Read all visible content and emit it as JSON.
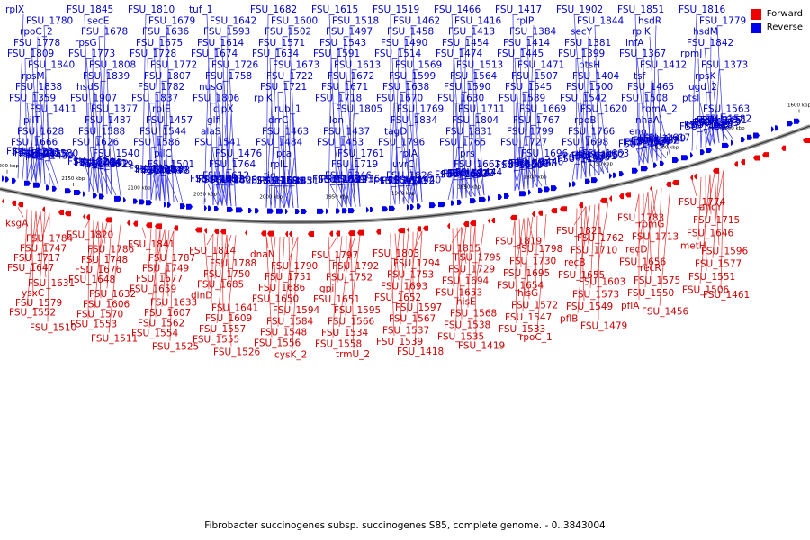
{
  "legend": {
    "forward": {
      "label": "Forward",
      "color": "#ee0000"
    },
    "reverse": {
      "label": "Reverse",
      "color": "#0000ee"
    }
  },
  "caption": "Fibrobacter succinogenes subsp. succinogenes S85, complete genome. - 0..3843004",
  "scale_ticks": [
    "2200 kbp",
    "2150 kbp",
    "2100 kbp",
    "2050 kbp",
    "2000 kbp",
    "1950 kbp",
    "1900 kbp",
    "1850 kbp",
    "1800 kbp",
    "1750 kbp",
    "1700 kbp",
    "1650 kbp",
    "1600 kbp"
  ],
  "reverse_labels": [
    "rplX",
    "FSU_1845",
    "FSU_1810",
    "tuf_1",
    "FSU_1682",
    "FSU_1615",
    "FSU_1519",
    "FSU_1466",
    "FSU_1417",
    "FSU_1902",
    "FSU_1851",
    "FSU_1816",
    "FSU_1780",
    "secE",
    "FSU_1679",
    "FSU_1642",
    "FSU_1600",
    "FSU_1518",
    "FSU_1462",
    "FSU_1416",
    "rplP",
    "FSU_1844",
    "hsdR",
    "FSU_1779",
    "rpoC_2",
    "FSU_1678",
    "FSU_1636",
    "FSU_1593",
    "FSU_1502",
    "FSU_1497",
    "FSU_1458",
    "FSU_1413",
    "FSU_1384",
    "secY",
    "rplK",
    "hsdM",
    "FSU_1778",
    "rpsG",
    "FSU_1675",
    "FSU_1614",
    "FSU_1571",
    "FSU_1543",
    "FSU_1490",
    "FSU_1454",
    "FSU_1414",
    "FSU_1381",
    "infA",
    "FSU_1842",
    "FSU_1809",
    "FSU_1773",
    "FSU_1728",
    "FSU_1674",
    "FSU_1634",
    "FSU_1591",
    "FSU_1514",
    "FSU_1474",
    "FSU_1445",
    "FSU_1399",
    "FSU_1367",
    "rpmJ",
    "FSU_1840",
    "FSU_1808",
    "FSU_1772",
    "FSU_1726",
    "FSU_1673",
    "FSU_1613",
    "FSU_1569",
    "FSU_1513",
    "FSU_1471",
    "ptsH",
    "FSU_1412",
    "FSU_1373",
    "rpsM",
    "FSU_1839",
    "FSU_1807",
    "FSU_1758",
    "FSU_1722",
    "FSU_1672",
    "FSU_1599",
    "FSU_1564",
    "FSU_1507",
    "FSU_1404",
    "tsf",
    "rpsK",
    "FSU_1838",
    "hsdS",
    "FSU_1782",
    "nusG",
    "FSU_1721",
    "FSU_1671",
    "FSU_1638",
    "FSU_1590",
    "FSU_1545",
    "FSU_1500",
    "FSU_1465",
    "ugd_2",
    "FSU_1359",
    "FSU_1907",
    "FSU_1837",
    "FSU_1806",
    "rplK",
    "FSU_1718",
    "FSU_1670",
    "FSU_1630",
    "FSU_1589",
    "FSU_1542",
    "FSU_1508",
    "ptsI",
    "FSU_1411",
    "FSU_1377",
    "rplE",
    "clpX",
    "rub_1",
    "FSU_1805",
    "FSU_1769",
    "FSU_1711",
    "FSU_1669",
    "FSU_1620",
    "romA_2",
    "FSU_1563",
    "pilT",
    "FSU_1487",
    "FSU_1457",
    "glf",
    "drrC",
    "lon",
    "FSU_1834",
    "FSU_1804",
    "FSU_1767",
    "rpoB",
    "nhaA",
    "FSU_1667",
    "FSU_1628",
    "FSU_1588",
    "FSU_1544",
    "alaS",
    "FSU_1463",
    "FSU_1437",
    "tagD",
    "FSU_1831",
    "FSU_1799",
    "FSU_1766",
    "eno",
    "yfiA",
    "FSU_1666",
    "FSU_1626",
    "FSU_1586",
    "FSU_1541",
    "FSU_1484",
    "FSU_1453",
    "FSU_1796",
    "FSU_1765",
    "FSU_1727",
    "FSU_1698",
    "FSU_1664",
    "FSU_1622",
    "FSU_1580",
    "FSU_1540",
    "pilC",
    "FSU_1476",
    "pta",
    "FSU_1761",
    "rplA",
    "prs",
    "FSU_1696",
    "FSU_1663",
    "FSU_1617",
    "FSU_1582",
    "prmA",
    "FSU_1529",
    "FSU_1501",
    "FSU_1764",
    "rplL",
    "FSU_1719",
    "uvrC",
    "FSU_1662",
    "sbcD",
    "leuS",
    "glnN_1",
    "nifH_2",
    "FSU_1691",
    "FSU_1661",
    "FSU_1639",
    "FSU_1612",
    "tig",
    "FSU_1846",
    "FSU_1826",
    "FSU_1822",
    "FSU_1827",
    "FSU_1781",
    "FSU_1757",
    "FSU_1683",
    "FSU_1703",
    "FSU_1704",
    "FSU_1684",
    "FSU_1687",
    "FSU_1688",
    "FSU_1689",
    "FSU_1690",
    "FSU_1623",
    "FSU_1616",
    "FSU_1635",
    "FSU_1637",
    "FSU_1618",
    "FSU_1823",
    "FSU_1824",
    "FSU_1825",
    "FSU_1756",
    "FSU_1759",
    "FSU_1701",
    "FSU_1702",
    "FSU_1706",
    "FSU_1520",
    "FSU_1459",
    "FSU_1470",
    "FSU_1438",
    "FSU_1439",
    "rpsI",
    "rplM",
    "FSU_1428",
    "FSU_1431",
    "FSU_1436",
    "FSU_1440",
    "FSU_1444",
    "FSU_1446",
    "FSU_1452",
    "FSU_1449",
    "FSU_1451",
    "FSU_1455",
    "FSU_1472",
    "FSU_1478",
    "FSU_1480",
    "FSU_1485",
    "FSU_1491",
    "FSU_1492",
    "FSU_1467",
    "FSU_1468",
    "FSU_1475",
    "FSU_1482",
    "FSU_1473",
    "FSU_1481",
    "FSU_1486",
    "FSU_1488",
    "FSU_1493",
    "FSU_1521",
    "FSU_1522",
    "FSU_1523",
    "FSU_1524"
  ],
  "forward_labels": [
    "ksgA",
    "FSU_1820",
    "FSU_1841",
    "FSU_1814",
    "dnaN",
    "FSU_1797",
    "FSU_1803",
    "FSU_1815",
    "FSU_1819",
    "FSU_1821",
    "FSU_1783",
    "FSU_1774",
    "FSU_1784",
    "FSU_1786",
    "FSU_1787",
    "FSU_1788",
    "FSU_1790",
    "FSU_1792",
    "FSU_1794",
    "FSU_1795",
    "FSU_1798",
    "FSU_1762",
    "rpmG",
    "ahcY",
    "FSU_1747",
    "FSU_1748",
    "FSU_1749",
    "FSU_1750",
    "FSU_1751",
    "FSU_1752",
    "FSU_1753",
    "FSU_1729",
    "FSU_1730",
    "FSU_1710",
    "FSU_1713",
    "FSU_1715",
    "FSU_1717",
    "FSU_1676",
    "FSU_1677",
    "FSU_1685",
    "FSU_1686",
    "gpi",
    "FSU_1693",
    "FSU_1694",
    "FSU_1695",
    "recB",
    "recD",
    "FSU_1646",
    "FSU_1647",
    "FSU_1648",
    "FSU_1659",
    "dinD",
    "FSU_1650",
    "FSU_1651",
    "FSU_1652",
    "FSU_1653",
    "FSU_1654",
    "FSU_1655",
    "FSU_1656",
    "metH",
    "FSU_1631",
    "FSU_1632",
    "FSU_1633",
    "FSU_1641",
    "FSU_1594",
    "FSU_1595",
    "FSU_1597",
    "hisE",
    "hisG",
    "FSU_1603",
    "recR",
    "FSU_1596",
    "ysxC",
    "FSU_1606",
    "FSU_1607",
    "FSU_1609",
    "FSU_1584",
    "FSU_1566",
    "FSU_1567",
    "FSU_1568",
    "FSU_1572",
    "FSU_1573",
    "FSU_1575",
    "FSU_1577",
    "FSU_1579",
    "FSU_1570",
    "FSU_1562",
    "FSU_1557",
    "FSU_1548",
    "FSU_1534",
    "FSU_1537",
    "FSU_1538",
    "FSU_1547",
    "FSU_1549",
    "FSU_1550",
    "FSU_1551",
    "FSU_1552",
    "FSU_1553",
    "FSU_1554",
    "FSU_1555",
    "FSU_1556",
    "FSU_1558",
    "FSU_1539",
    "FSU_1535",
    "FSU_1533",
    "pflB",
    "pflA",
    "FSU_1506",
    "FSU_1510",
    "FSU_1511",
    "FSU_1525",
    "FSU_1526",
    "cysK_2",
    "trmU_2",
    "FSU_1418",
    "FSU_1419",
    "rpoC_1",
    "FSU_1479",
    "FSU_1456",
    "FSU_1461"
  ]
}
